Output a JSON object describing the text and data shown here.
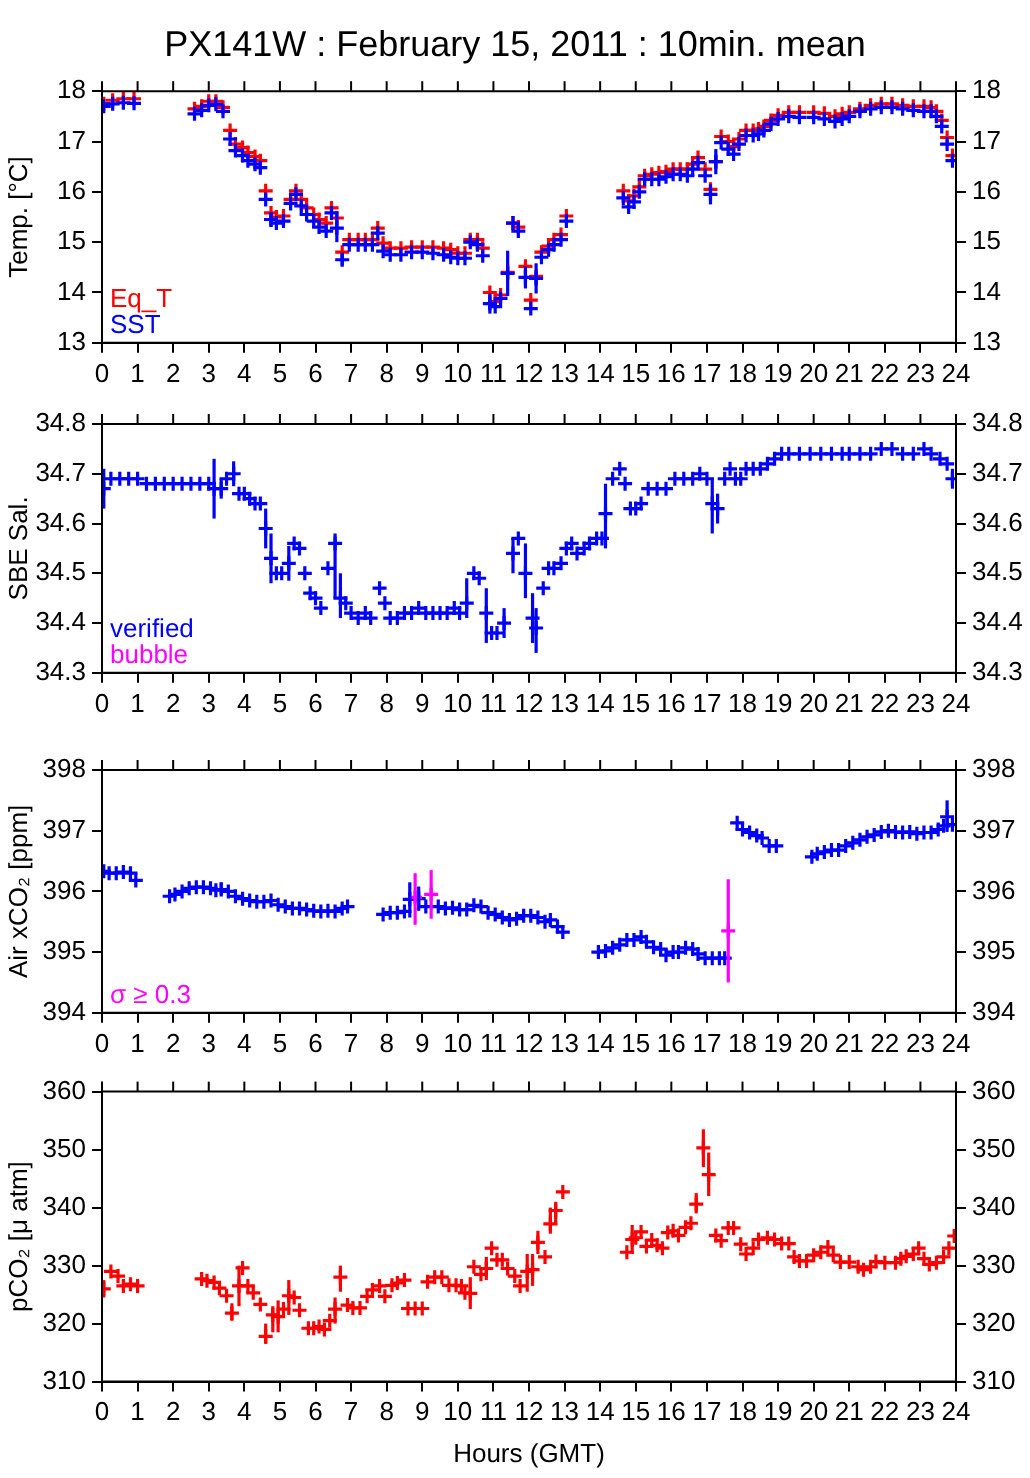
{
  "chart_data": [
    {
      "type": "scatter",
      "title": "PX141W : February 15, 2011 : 10min. mean",
      "ylabel": "Temp. [°C]",
      "marker": "cross",
      "grid": false,
      "legend": "bottom left",
      "xlim": [
        0,
        24
      ],
      "xticks": [
        0,
        1,
        2,
        3,
        4,
        5,
        6,
        7,
        8,
        9,
        10,
        11,
        12,
        13,
        14,
        15,
        16,
        17,
        18,
        19,
        20,
        21,
        22,
        23,
        24
      ],
      "ylim": [
        13,
        18
      ],
      "yticks": [
        13,
        14,
        15,
        16,
        17,
        18
      ],
      "y2lim": [
        13,
        18
      ],
      "y2ticks": [
        13,
        14,
        15,
        16,
        17,
        18
      ],
      "x": [
        0.05,
        0.3,
        0.6,
        0.9,
        2.6,
        2.8,
        3.0,
        3.2,
        3.4,
        3.6,
        3.75,
        3.95,
        4.1,
        4.3,
        4.45,
        4.6,
        4.75,
        4.9,
        5.1,
        5.3,
        5.45,
        5.6,
        5.75,
        5.95,
        6.1,
        6.3,
        6.45,
        6.6,
        6.75,
        6.95,
        7.2,
        7.4,
        7.6,
        7.75,
        7.9,
        8.1,
        8.4,
        8.7,
        9.0,
        9.3,
        9.6,
        9.8,
        10.0,
        10.2,
        10.35,
        10.55,
        10.7,
        10.9,
        11.05,
        11.2,
        11.4,
        11.55,
        11.7,
        11.9,
        12.05,
        12.2,
        12.35,
        12.55,
        12.7,
        12.9,
        13.05,
        14.65,
        14.8,
        14.95,
        15.1,
        15.25,
        15.45,
        15.65,
        15.85,
        16.05,
        16.25,
        16.45,
        16.6,
        16.75,
        16.95,
        17.1,
        17.25,
        17.4,
        17.6,
        17.75,
        17.9,
        18.1,
        18.3,
        18.45,
        18.6,
        18.8,
        19.0,
        19.3,
        19.6,
        20.0,
        20.3,
        20.6,
        20.8,
        21.0,
        21.3,
        21.6,
        21.9,
        22.2,
        22.5,
        22.8,
        23.1,
        23.3,
        23.45,
        23.6,
        23.75,
        23.9
      ],
      "series": [
        {
          "name": "Eq_T",
          "color": "#ff0000",
          "values": [
            17.75,
            17.82,
            17.85,
            17.85,
            17.65,
            17.7,
            17.8,
            17.8,
            17.68,
            17.22,
            16.95,
            16.88,
            16.78,
            16.7,
            16.62,
            16.02,
            15.58,
            15.5,
            15.52,
            15.85,
            16.02,
            15.85,
            15.68,
            15.55,
            15.45,
            15.38,
            15.68,
            15.48,
            14.8,
            15.05,
            15.05,
            15.05,
            15.05,
            15.28,
            14.98,
            14.88,
            14.88,
            14.9,
            14.9,
            14.9,
            14.88,
            14.85,
            14.78,
            14.78,
            15.05,
            15.05,
            14.88,
            14.0,
            13.82,
            13.95,
            14.4,
            15.38,
            15.3,
            14.52,
            13.85,
            14.32,
            14.8,
            14.92,
            15.05,
            15.15,
            15.52,
            16.02,
            15.82,
            15.92,
            16.1,
            16.32,
            16.35,
            16.38,
            16.4,
            16.45,
            16.45,
            16.45,
            16.55,
            16.68,
            16.45,
            16.05,
            16.6,
            17.1,
            17.0,
            16.9,
            17.05,
            17.22,
            17.22,
            17.25,
            17.3,
            17.42,
            17.52,
            17.58,
            17.58,
            17.58,
            17.56,
            17.5,
            17.55,
            17.58,
            17.65,
            17.72,
            17.75,
            17.75,
            17.72,
            17.7,
            17.7,
            17.68,
            17.6,
            17.42,
            17.08,
            16.72
          ]
        },
        {
          "name": "SST",
          "color": "#0000ff",
          "values": [
            17.7,
            17.75,
            17.77,
            17.76,
            17.55,
            17.62,
            17.72,
            17.74,
            17.6,
            17.05,
            16.82,
            16.72,
            16.62,
            16.55,
            16.48,
            15.85,
            15.45,
            15.38,
            15.42,
            15.77,
            15.95,
            15.72,
            15.55,
            15.42,
            15.3,
            15.22,
            15.58,
            15.28,
            14.65,
            14.95,
            14.95,
            14.95,
            14.95,
            15.18,
            14.82,
            14.75,
            14.75,
            14.8,
            14.8,
            14.78,
            14.75,
            14.7,
            14.68,
            14.68,
            15.0,
            14.95,
            14.73,
            13.78,
            13.72,
            13.88,
            14.38,
            15.38,
            15.22,
            14.3,
            13.68,
            14.28,
            14.7,
            14.85,
            14.95,
            15.05,
            15.42,
            15.88,
            15.7,
            15.8,
            16.0,
            16.25,
            16.25,
            16.25,
            16.3,
            16.35,
            16.35,
            16.32,
            16.45,
            16.58,
            16.32,
            15.95,
            16.6,
            16.98,
            16.85,
            16.75,
            16.95,
            17.12,
            17.12,
            17.15,
            17.22,
            17.35,
            17.45,
            17.5,
            17.48,
            17.48,
            17.45,
            17.4,
            17.45,
            17.5,
            17.6,
            17.65,
            17.68,
            17.68,
            17.65,
            17.62,
            17.6,
            17.6,
            17.5,
            17.3,
            16.95,
            16.62
          ],
          "errors": [
            null,
            null,
            null,
            null,
            null,
            null,
            null,
            null,
            null,
            null,
            null,
            null,
            null,
            null,
            null,
            null,
            0.15,
            null,
            null,
            null,
            null,
            null,
            null,
            null,
            null,
            null,
            null,
            0.28,
            0.12,
            null,
            null,
            null,
            null,
            null,
            null,
            null,
            null,
            null,
            null,
            null,
            null,
            null,
            null,
            null,
            null,
            null,
            null,
            0.2,
            null,
            null,
            0.45,
            null,
            null,
            0.22,
            null,
            0.3,
            null,
            null,
            null,
            null,
            null,
            null,
            null,
            null,
            null,
            null,
            null,
            null,
            null,
            null,
            null,
            null,
            null,
            null,
            null,
            0.2,
            0.25,
            null,
            null,
            null,
            null,
            null,
            null,
            null,
            null,
            null,
            null,
            null,
            null,
            null,
            null,
            null,
            null,
            null,
            null,
            null,
            null,
            null,
            null,
            null,
            null,
            null,
            null,
            null,
            null,
            null
          ]
        }
      ]
    },
    {
      "type": "scatter",
      "ylabel": "SBE Sal.",
      "marker": "cross",
      "grid": false,
      "legend": "bottom left",
      "xlim": [
        0,
        24
      ],
      "xticks": [
        0,
        1,
        2,
        3,
        4,
        5,
        6,
        7,
        8,
        9,
        10,
        11,
        12,
        13,
        14,
        15,
        16,
        17,
        18,
        19,
        20,
        21,
        22,
        23,
        24
      ],
      "ylim": [
        34.3,
        34.8
      ],
      "yticks": [
        34.3,
        34.4,
        34.5,
        34.6,
        34.7,
        34.8
      ],
      "y2lim": [
        34.3,
        34.8
      ],
      "y2ticks": [
        34.3,
        34.4,
        34.5,
        34.6,
        34.7,
        34.8
      ],
      "series": [
        {
          "name": "verified",
          "color": "#0000ff",
          "x": [
            0.05,
            0.25,
            0.5,
            0.75,
            1.0,
            1.25,
            1.5,
            1.75,
            2.0,
            2.25,
            2.5,
            2.75,
            3.0,
            3.15,
            3.35,
            3.5,
            3.7,
            3.85,
            4.0,
            4.15,
            4.3,
            4.45,
            4.6,
            4.75,
            4.9,
            5.05,
            5.25,
            5.4,
            5.55,
            5.7,
            5.85,
            6.0,
            6.15,
            6.35,
            6.55,
            6.7,
            6.85,
            7.0,
            7.2,
            7.4,
            7.55,
            7.8,
            7.95,
            8.1,
            8.3,
            8.5,
            8.7,
            8.9,
            9.1,
            9.3,
            9.5,
            9.7,
            9.9,
            10.05,
            10.25,
            10.45,
            10.6,
            10.8,
            10.95,
            11.1,
            11.3,
            11.55,
            11.7,
            11.9,
            12.1,
            12.2,
            12.4,
            12.55,
            12.7,
            12.9,
            13.05,
            13.2,
            13.35,
            13.55,
            13.7,
            13.9,
            14.05,
            14.15,
            14.35,
            14.55,
            14.7,
            14.85,
            15.0,
            15.15,
            15.35,
            15.6,
            15.85,
            16.1,
            16.35,
            16.6,
            16.8,
            17.0,
            17.15,
            17.3,
            17.5,
            17.65,
            17.8,
            17.95,
            18.1,
            18.3,
            18.5,
            18.7,
            18.9,
            19.1,
            19.3,
            19.6,
            19.9,
            20.2,
            20.5,
            20.8,
            21.0,
            21.3,
            21.6,
            21.9,
            22.2,
            22.5,
            22.8,
            23.1,
            23.3,
            23.55,
            23.75,
            23.9
          ],
          "values": [
            34.67,
            34.69,
            34.69,
            34.69,
            34.69,
            34.68,
            34.68,
            34.68,
            34.68,
            34.68,
            34.68,
            34.68,
            34.68,
            34.67,
            34.67,
            34.69,
            34.7,
            34.66,
            34.66,
            34.65,
            34.64,
            34.64,
            34.59,
            34.53,
            34.5,
            34.5,
            34.52,
            34.56,
            34.55,
            34.5,
            34.46,
            34.45,
            34.43,
            34.51,
            34.56,
            34.45,
            34.44,
            34.42,
            34.41,
            34.42,
            34.41,
            34.47,
            34.44,
            34.41,
            34.41,
            34.42,
            34.42,
            34.43,
            34.42,
            34.42,
            34.42,
            34.42,
            34.43,
            34.42,
            34.44,
            34.5,
            34.49,
            34.42,
            34.38,
            34.38,
            34.4,
            34.54,
            34.57,
            34.5,
            34.41,
            34.39,
            34.47,
            34.51,
            34.51,
            34.52,
            34.55,
            34.56,
            34.54,
            34.55,
            34.56,
            34.57,
            34.57,
            34.62,
            34.69,
            34.71,
            34.68,
            34.63,
            34.63,
            34.64,
            34.67,
            34.67,
            34.67,
            34.69,
            34.69,
            34.69,
            34.7,
            34.69,
            34.64,
            34.63,
            34.69,
            34.71,
            34.69,
            34.69,
            34.71,
            34.71,
            34.71,
            34.72,
            34.73,
            34.74,
            34.74,
            34.74,
            34.74,
            34.74,
            34.74,
            34.74,
            34.74,
            34.74,
            34.74,
            34.75,
            34.75,
            34.74,
            34.74,
            34.75,
            34.74,
            34.73,
            34.72,
            34.69
          ],
          "errors": [
            0.04,
            null,
            null,
            null,
            null,
            null,
            null,
            null,
            null,
            null,
            null,
            null,
            null,
            0.06,
            0.02,
            null,
            0.025,
            null,
            null,
            null,
            null,
            null,
            0.04,
            0.05,
            null,
            null,
            0.035,
            null,
            null,
            null,
            null,
            null,
            null,
            null,
            [
              34.45,
              34.58
            ],
            [
              34.41,
              34.5
            ],
            null,
            null,
            null,
            null,
            null,
            null,
            null,
            null,
            null,
            null,
            null,
            null,
            null,
            null,
            null,
            null,
            null,
            null,
            [
              34.41,
              34.49
            ],
            null,
            null,
            [
              34.36,
              34.47
            ],
            null,
            null,
            [
              34.37,
              34.43
            ],
            [
              34.5,
              34.57
            ],
            null,
            [
              34.45,
              34.56
            ],
            [
              34.36,
              34.46
            ],
            [
              34.34,
              34.43
            ],
            null,
            null,
            null,
            null,
            null,
            null,
            null,
            null,
            null,
            null,
            null,
            [
              34.55,
              34.68
            ],
            null,
            null,
            null,
            null,
            null,
            null,
            null,
            null,
            null,
            null,
            null,
            null,
            null,
            null,
            [
              34.58,
              34.69
            ],
            [
              34.6,
              34.66
            ],
            null,
            null,
            null,
            null,
            null,
            null,
            null,
            null,
            null,
            null,
            null,
            null,
            null,
            null,
            null,
            null,
            null,
            null,
            null,
            null,
            null,
            null,
            null,
            null,
            null,
            null,
            null,
            0.02
          ]
        },
        {
          "name": "bubble",
          "color": "#ff00ff"
        }
      ]
    },
    {
      "type": "scatter",
      "ylabel": "Air xCO₂ [ppm]",
      "marker": "cross",
      "grid": false,
      "legend": "bottom left",
      "xlim": [
        0,
        24
      ],
      "xticks": [
        0,
        1,
        2,
        3,
        4,
        5,
        6,
        7,
        8,
        9,
        10,
        11,
        12,
        13,
        14,
        15,
        16,
        17,
        18,
        19,
        20,
        21,
        22,
        23,
        24
      ],
      "ylim": [
        394,
        398
      ],
      "yticks": [
        394,
        395,
        396,
        397,
        398
      ],
      "y2lim": [
        394,
        398
      ],
      "y2ticks": [
        394,
        395,
        396,
        397,
        398
      ],
      "series": [
        {
          "color": "#0000ff",
          "x": [
            0.05,
            0.2,
            0.4,
            0.6,
            0.8,
            0.95,
            1.9,
            2.05,
            2.25,
            2.45,
            2.65,
            2.85,
            3.05,
            3.2,
            3.35,
            3.55,
            3.75,
            3.95,
            4.15,
            4.35,
            4.55,
            4.75,
            4.95,
            5.15,
            5.35,
            5.55,
            5.75,
            5.95,
            6.15,
            6.35,
            6.55,
            6.75,
            6.9,
            7.9,
            8.1,
            8.3,
            8.5,
            8.65,
            8.9,
            9.1,
            9.45,
            9.65,
            9.85,
            10.05,
            10.25,
            10.45,
            10.65,
            10.85,
            11.05,
            11.25,
            11.45,
            11.65,
            11.85,
            12.05,
            12.25,
            12.45,
            12.6,
            12.8,
            12.95,
            13.95,
            14.15,
            14.35,
            14.55,
            14.75,
            14.95,
            15.15,
            15.3,
            15.5,
            15.7,
            15.85,
            16.05,
            16.2,
            16.4,
            16.6,
            16.75,
            16.95,
            17.15,
            17.35,
            17.5,
            17.85,
            18.0,
            18.2,
            18.4,
            18.55,
            18.75,
            18.95,
            19.95,
            20.1,
            20.3,
            20.5,
            20.7,
            20.9,
            21.1,
            21.3,
            21.5,
            21.7,
            21.9,
            22.1,
            22.3,
            22.5,
            22.7,
            22.9,
            23.1,
            23.3,
            23.5,
            23.65,
            23.75,
            23.9
          ],
          "values": [
            396.33,
            396.3,
            396.3,
            396.32,
            396.3,
            396.18,
            395.92,
            395.95,
            396.0,
            396.05,
            396.07,
            396.07,
            396.05,
            396.02,
            396.03,
            396.0,
            395.92,
            395.88,
            395.85,
            395.83,
            395.83,
            395.85,
            395.78,
            395.75,
            395.72,
            395.72,
            395.7,
            395.68,
            395.67,
            395.68,
            395.67,
            395.72,
            395.75,
            395.62,
            395.65,
            395.65,
            395.67,
            395.87,
            395.88,
            395.75,
            395.75,
            395.72,
            395.73,
            395.7,
            395.7,
            395.77,
            395.75,
            395.65,
            395.62,
            395.57,
            395.53,
            395.55,
            395.6,
            395.6,
            395.57,
            395.5,
            395.53,
            395.42,
            395.33,
            395.0,
            395.02,
            395.07,
            395.12,
            395.2,
            395.2,
            395.25,
            395.17,
            395.08,
            395.05,
            394.95,
            395.0,
            395.0,
            395.07,
            395.05,
            394.97,
            394.9,
            394.9,
            394.9,
            394.9,
            397.13,
            397.02,
            396.97,
            396.92,
            396.88,
            396.75,
            396.75,
            396.57,
            396.62,
            396.65,
            396.68,
            396.68,
            396.75,
            396.8,
            396.85,
            396.9,
            396.93,
            396.98,
            397.0,
            396.98,
            396.97,
            396.98,
            396.95,
            396.97,
            396.97,
            397.02,
            397.08,
            397.23,
            397.1
          ],
          "errors": [
            null,
            null,
            null,
            null,
            null,
            null,
            null,
            null,
            null,
            null,
            null,
            null,
            null,
            null,
            [
              395.95,
              396.15
            ],
            null,
            null,
            null,
            null,
            null,
            null,
            null,
            null,
            null,
            null,
            null,
            null,
            null,
            null,
            null,
            null,
            null,
            null,
            null,
            null,
            null,
            null,
            [
              395.57,
              396.15
            ],
            [
              395.68,
              396.08
            ],
            null,
            null,
            null,
            null,
            null,
            null,
            null,
            null,
            null,
            null,
            null,
            null,
            null,
            null,
            null,
            null,
            null,
            null,
            null,
            null,
            null,
            null,
            null,
            null,
            null,
            null,
            null,
            null,
            null,
            null,
            null,
            null,
            null,
            null,
            null,
            null,
            null,
            null,
            null,
            null,
            null,
            null,
            null,
            null,
            null,
            null,
            null,
            null,
            null,
            null,
            null,
            null,
            null,
            null,
            null,
            null,
            null,
            null,
            null,
            null,
            null,
            null,
            null,
            null,
            null,
            null,
            null,
            [
              396.98,
              397.5
            ],
            null
          ]
        },
        {
          "name": "σ ≥ 0.3",
          "color": "#ff00ff",
          "x": [
            8.8,
            9.25,
            17.6
          ],
          "values": [
            395.9,
            395.95,
            395.35
          ],
          "errors": [
            [
              395.45,
              396.3
            ],
            [
              395.55,
              396.35
            ],
            [
              394.5,
              396.2
            ]
          ]
        }
      ]
    },
    {
      "type": "scatter",
      "ylabel": "pCO₂ [μ atm]",
      "xlabel": "Hours (GMT)",
      "marker": "cross",
      "grid": false,
      "xlim": [
        0,
        24
      ],
      "xticks": [
        0,
        1,
        2,
        3,
        4,
        5,
        6,
        7,
        8,
        9,
        10,
        11,
        12,
        13,
        14,
        15,
        16,
        17,
        18,
        19,
        20,
        21,
        22,
        23,
        24
      ],
      "ylim": [
        310,
        360
      ],
      "yticks": [
        310,
        320,
        330,
        340,
        350,
        360
      ],
      "y2lim": [
        310,
        360
      ],
      "y2ticks": [
        310,
        320,
        330,
        340,
        350,
        360
      ],
      "series": [
        {
          "color": "#ff0000",
          "x": [
            0.05,
            0.25,
            0.45,
            0.6,
            0.8,
            1.0,
            2.8,
            2.95,
            3.15,
            3.3,
            3.5,
            3.65,
            3.85,
            3.95,
            4.1,
            4.25,
            4.45,
            4.6,
            4.8,
            4.95,
            5.1,
            5.25,
            5.4,
            5.55,
            5.8,
            5.95,
            6.1,
            6.25,
            6.4,
            6.55,
            6.7,
            6.9,
            7.05,
            7.25,
            7.45,
            7.6,
            7.8,
            7.95,
            8.15,
            8.3,
            8.5,
            8.6,
            8.8,
            9.0,
            9.15,
            9.35,
            9.55,
            9.75,
            9.95,
            10.1,
            10.2,
            10.35,
            10.45,
            10.65,
            10.8,
            10.95,
            11.1,
            11.25,
            11.4,
            11.6,
            11.75,
            11.95,
            12.1,
            12.25,
            12.45,
            12.6,
            12.75,
            12.95,
            14.75,
            14.9,
            15.0,
            15.15,
            15.3,
            15.45,
            15.6,
            15.75,
            15.9,
            16.05,
            16.2,
            16.4,
            16.55,
            16.7,
            16.9,
            17.05,
            17.25,
            17.4,
            17.6,
            17.75,
            17.95,
            18.1,
            18.3,
            18.45,
            18.7,
            18.9,
            19.1,
            19.3,
            19.45,
            19.6,
            19.8,
            20.0,
            20.2,
            20.4,
            20.55,
            20.75,
            21.0,
            21.25,
            21.4,
            21.6,
            21.75,
            22.0,
            22.3,
            22.45,
            22.6,
            22.8,
            22.95,
            23.1,
            23.25,
            23.45,
            23.65,
            23.8,
            23.95
          ],
          "values": [
            326,
            329,
            328.2,
            326.5,
            326.8,
            326.5,
            327.7,
            327.4,
            327.1,
            326.1,
            324.8,
            321.8,
            326.5,
            329.6,
            326.5,
            325.3,
            323.3,
            317.8,
            321.5,
            321.2,
            322.5,
            324.8,
            324.5,
            322.3,
            319.2,
            319.2,
            319.5,
            319.0,
            320.5,
            322.5,
            328,
            323.2,
            322.7,
            322.7,
            324.7,
            325.8,
            326.5,
            324.7,
            326.6,
            327,
            327.5,
            322.6,
            322.6,
            322.6,
            327.2,
            328,
            328,
            326.6,
            326.6,
            326.5,
            325.3,
            325.2,
            329.8,
            328.5,
            329.5,
            333,
            331,
            331,
            329.5,
            328.2,
            326.5,
            329,
            329.3,
            334,
            331.5,
            337.2,
            339.5,
            342.7,
            332.3,
            334.5,
            334.8,
            335.8,
            333.3,
            334.4,
            333.5,
            333,
            335.7,
            336.0,
            335.2,
            336.6,
            337.3,
            340.6,
            350.3,
            345.7,
            335.2,
            334.3,
            336.5,
            336.5,
            333.7,
            332,
            333,
            334.5,
            334.8,
            334.5,
            333.8,
            333.8,
            331.5,
            330.8,
            330.8,
            331.8,
            332.3,
            333.2,
            331.8,
            330.6,
            330.6,
            329.8,
            329.3,
            329.8,
            330.7,
            330.5,
            330.5,
            331.2,
            331.6,
            332,
            333,
            331.2,
            330.2,
            330.5,
            331.5,
            333,
            335.1
          ],
          "errors": [
            [
              324.5,
              327.5
            ],
            null,
            null,
            null,
            null,
            null,
            null,
            null,
            null,
            null,
            null,
            [
              320.5,
              323.5
            ],
            [
              323,
              330
            ],
            null,
            null,
            null,
            null,
            [
              316.5,
              320
            ],
            [
              318.5,
              323
            ],
            [
              318.5,
              324
            ],
            null,
            [
              321.5,
              327.5
            ],
            null,
            null,
            null,
            null,
            null,
            null,
            null,
            [
              320,
              324.5
            ],
            [
              325.5,
              330
            ],
            null,
            null,
            null,
            null,
            null,
            null,
            null,
            null,
            null,
            null,
            null,
            null,
            null,
            null,
            null,
            null,
            null,
            null,
            null,
            null,
            [
              322.5,
              328
            ],
            null,
            null,
            [
              327.5,
              331.5
            ],
            null,
            null,
            null,
            null,
            null,
            null,
            [
              325.5,
              332
            ],
            [
              326.5,
              332
            ],
            [
              332,
              336
            ],
            null,
            [
              335.5,
              340
            ],
            [
              337,
              341
            ],
            null,
            null,
            [
              332,
              337
            ],
            null,
            null,
            null,
            null,
            null,
            null,
            null,
            null,
            null,
            null,
            null,
            [
              339,
              342.5
            ],
            [
              347,
              353.5
            ],
            [
              342,
              349.5
            ],
            null,
            null,
            null,
            null,
            null,
            null,
            null,
            null,
            null,
            null,
            null,
            null,
            null,
            null,
            null,
            null,
            null,
            null,
            null,
            null,
            null,
            null,
            null,
            null,
            null,
            null,
            null,
            null,
            null,
            null,
            null,
            null,
            null,
            null,
            null,
            null,
            null
          ]
        }
      ]
    }
  ]
}
